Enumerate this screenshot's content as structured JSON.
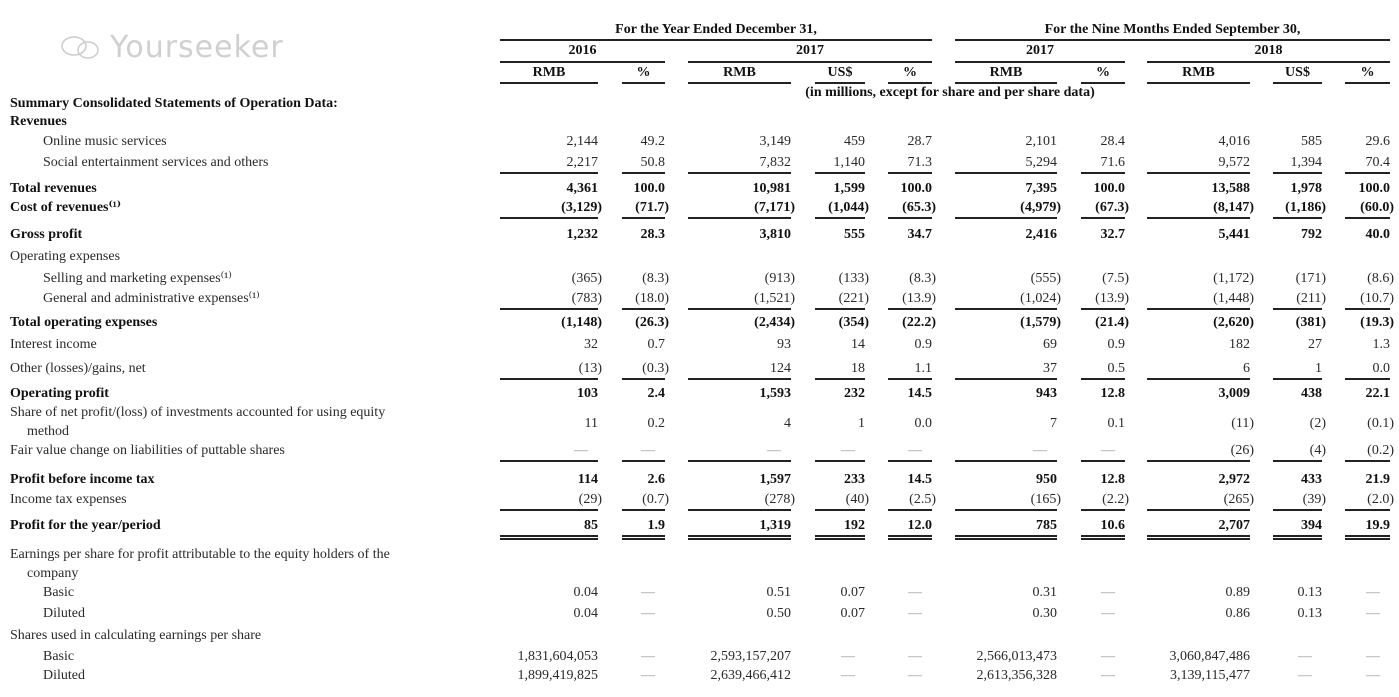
{
  "header": {
    "period_year": "For the Year Ended December 31,",
    "period_nine_months": "For the Nine Months Ended September 30,",
    "years": [
      "2016",
      "2017",
      "2017",
      "2018"
    ],
    "columns": [
      "RMB",
      "%",
      "RMB",
      "US$",
      "%",
      "RMB",
      "%",
      "RMB",
      "US$",
      "%"
    ],
    "units_note": "(in millions, except for share and per share data)"
  },
  "rows": [
    {
      "label": "Summary Consolidated Statements of Operation Data:",
      "bold": true,
      "indent": 0,
      "values": []
    },
    {
      "label": "Revenues",
      "bold": true,
      "indent": 0,
      "values": []
    },
    {
      "label": "Online music services",
      "bold": false,
      "indent": 2,
      "values": [
        "2,144",
        "49.2",
        "3,149",
        "459",
        "28.7",
        "2,101",
        "28.4",
        "4,016",
        "585",
        "29.6"
      ]
    },
    {
      "label": "Social entertainment services and others",
      "bold": false,
      "indent": 2,
      "values": [
        "2,217",
        "50.8",
        "7,832",
        "1,140",
        "71.3",
        "5,294",
        "71.6",
        "9,572",
        "1,394",
        "70.4"
      ],
      "rule": "single"
    },
    {
      "label": "Total revenues",
      "bold": true,
      "indent": 0,
      "values": [
        "4,361",
        "100.0",
        "10,981",
        "1,599",
        "100.0",
        "7,395",
        "100.0",
        "13,588",
        "1,978",
        "100.0"
      ]
    },
    {
      "label": "Cost of revenues⁽¹⁾",
      "bold": true,
      "indent": 0,
      "values": [
        "(3,129)",
        "(71.7)",
        "(7,171)",
        "(1,044)",
        "(65.3)",
        "(4,979)",
        "(67.3)",
        "(8,147)",
        "(1,186)",
        "(60.0)"
      ],
      "rule": "single"
    },
    {
      "label": "Gross profit",
      "bold": true,
      "indent": 0,
      "values": [
        "1,232",
        "28.3",
        "3,810",
        "555",
        "34.7",
        "2,416",
        "32.7",
        "5,441",
        "792",
        "40.0"
      ]
    },
    {
      "label": "Operating expenses",
      "bold": false,
      "indent": 0,
      "values": []
    },
    {
      "label": "Selling and marketing expenses⁽¹⁾",
      "bold": false,
      "indent": 2,
      "values": [
        "(365)",
        "(8.3)",
        "(913)",
        "(133)",
        "(8.3)",
        "(555)",
        "(7.5)",
        "(1,172)",
        "(171)",
        "(8.6)"
      ]
    },
    {
      "label": "General and administrative expenses⁽¹⁾",
      "bold": false,
      "indent": 2,
      "values": [
        "(783)",
        "(18.0)",
        "(1,521)",
        "(221)",
        "(13.9)",
        "(1,024)",
        "(13.9)",
        "(1,448)",
        "(211)",
        "(10.7)"
      ],
      "rule": "single"
    },
    {
      "label": "Total operating expenses",
      "bold": true,
      "indent": 0,
      "values": [
        "(1,148)",
        "(26.3)",
        "(2,434)",
        "(354)",
        "(22.2)",
        "(1,579)",
        "(21.4)",
        "(2,620)",
        "(381)",
        "(19.3)"
      ]
    },
    {
      "label": "Interest income",
      "bold": false,
      "indent": 0,
      "values": [
        "32",
        "0.7",
        "93",
        "14",
        "0.9",
        "69",
        "0.9",
        "182",
        "27",
        "1.3"
      ]
    },
    {
      "label": "Other (losses)/gains, net",
      "bold": false,
      "indent": 0,
      "values": [
        "(13)",
        "(0.3)",
        "124",
        "18",
        "1.1",
        "37",
        "0.5",
        "6",
        "1",
        "0.0"
      ],
      "rule": "single"
    },
    {
      "label": "Operating profit",
      "bold": true,
      "indent": 0,
      "values": [
        "103",
        "2.4",
        "1,593",
        "232",
        "14.5",
        "943",
        "12.8",
        "3,009",
        "438",
        "22.1"
      ]
    },
    {
      "label": "Share of net profit/(loss) of investments accounted for using equity",
      "label2": "method",
      "bold": false,
      "indent": 0,
      "values": [
        "11",
        "0.2",
        "4",
        "1",
        "0.0",
        "7",
        "0.1",
        "(11)",
        "(2)",
        "(0.1)"
      ]
    },
    {
      "label": "Fair value change on liabilities of puttable shares",
      "bold": false,
      "indent": 0,
      "values": [
        "—",
        "—",
        "—",
        "—",
        "—",
        "—",
        "—",
        "(26)",
        "(4)",
        "(0.2)"
      ],
      "rule": "single"
    },
    {
      "label": "Profit before income tax",
      "bold": true,
      "indent": 0,
      "values": [
        "114",
        "2.6",
        "1,597",
        "233",
        "14.5",
        "950",
        "12.8",
        "2,972",
        "433",
        "21.9"
      ]
    },
    {
      "label": "Income tax expenses",
      "bold": false,
      "indent": 0,
      "values": [
        "(29)",
        "(0.7)",
        "(278)",
        "(40)",
        "(2.5)",
        "(165)",
        "(2.2)",
        "(265)",
        "(39)",
        "(2.0)"
      ],
      "rule": "single"
    },
    {
      "label": "Profit for the year/period",
      "bold": true,
      "indent": 0,
      "values": [
        "85",
        "1.9",
        "1,319",
        "192",
        "12.0",
        "785",
        "10.6",
        "2,707",
        "394",
        "19.9"
      ],
      "rule": "double"
    },
    {
      "label": "Earnings per share for profit attributable to the equity holders of the",
      "label2": "company",
      "bold": false,
      "indent": 0,
      "values": []
    },
    {
      "label": "Basic",
      "bold": false,
      "indent": 2,
      "values": [
        "0.04",
        "—",
        "0.51",
        "0.07",
        "—",
        "0.31",
        "—",
        "0.89",
        "0.13",
        "—"
      ]
    },
    {
      "label": "Diluted",
      "bold": false,
      "indent": 2,
      "values": [
        "0.04",
        "—",
        "0.50",
        "0.07",
        "—",
        "0.30",
        "—",
        "0.86",
        "0.13",
        "—"
      ]
    },
    {
      "label": "Shares used in calculating earnings per share",
      "bold": false,
      "indent": 0,
      "values": []
    },
    {
      "label": "Basic",
      "bold": false,
      "indent": 2,
      "values": [
        "1,831,604,053",
        "—",
        "2,593,157,207",
        "—",
        "—",
        "2,566,013,473",
        "—",
        "3,060,847,486",
        "—",
        "—"
      ]
    },
    {
      "label": "Diluted",
      "bold": false,
      "indent": 2,
      "values": [
        "1,899,419,825",
        "—",
        "2,639,466,412",
        "—",
        "—",
        "2,613,356,328",
        "—",
        "3,139,115,477",
        "—",
        "—"
      ]
    }
  ],
  "watermark": "Yourseeker"
}
